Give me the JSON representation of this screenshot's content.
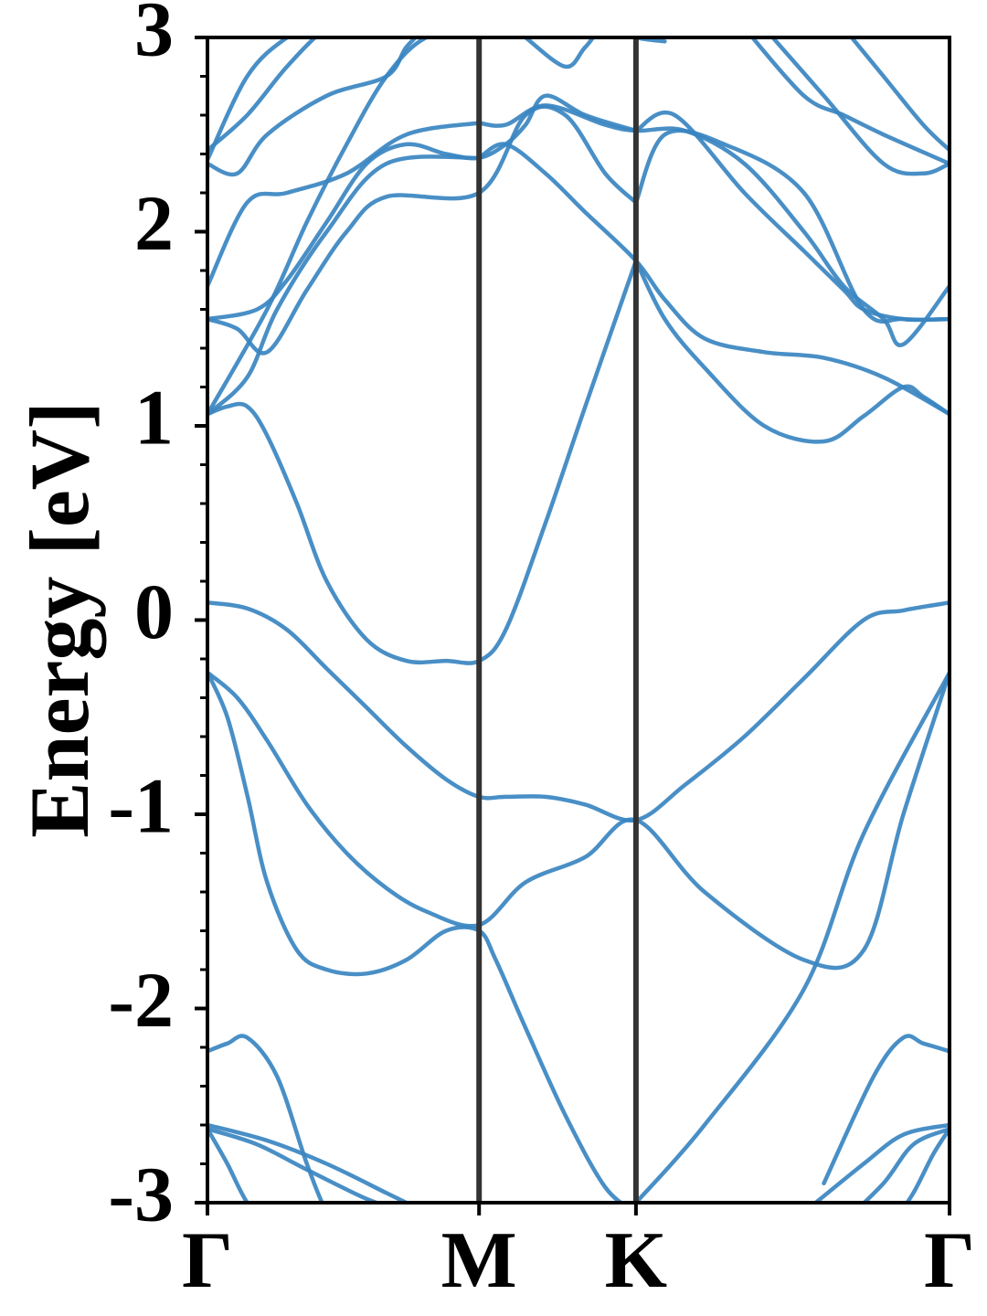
{
  "chart_data": {
    "type": "line",
    "title": "",
    "xlabel": "",
    "ylabel": "Energy [eV]",
    "ylim": [
      -3,
      3
    ],
    "xlim": [
      0,
      3.732
    ],
    "grid": false,
    "y_ticks": [
      -3,
      -2,
      -1,
      0,
      1,
      2,
      3
    ],
    "y_tick_labels": [
      "-3",
      "-2",
      "-1",
      "0",
      "1",
      "2",
      "3"
    ],
    "high_symmetry_points": [
      {
        "label": "Γ",
        "x": 0
      },
      {
        "label": "M",
        "x": 1.366
      },
      {
        "label": "K",
        "x": 2.155
      },
      {
        "label": "Γ",
        "x": 3.732
      }
    ],
    "colors": {
      "band": "#3a86c1",
      "divider": "#333333",
      "axis": "#000000"
    },
    "series": [
      {
        "x": [
          0,
          0.2,
          0.4,
          0.6,
          0.8,
          1.0,
          1.2,
          1.366,
          1.5,
          1.7,
          1.9,
          2.155,
          2.4,
          2.7,
          3.0,
          3.3,
          3.5,
          3.732
        ],
        "values": [
          0.09,
          0.06,
          -0.05,
          -0.25,
          -0.45,
          -0.65,
          -0.82,
          -0.91,
          -0.91,
          -0.91,
          -0.95,
          -1.03,
          -0.85,
          -0.6,
          -0.3,
          0.0,
          0.05,
          0.09
        ]
      },
      {
        "x": [
          0,
          0.15,
          0.3,
          0.5,
          0.7,
          0.9,
          1.1,
          1.366,
          1.6,
          1.9,
          2.155,
          2.5,
          3.0,
          3.3,
          3.5,
          3.732
        ],
        "values": [
          -0.27,
          -0.4,
          -0.62,
          -0.95,
          -1.2,
          -1.38,
          -1.5,
          -1.57,
          -1.35,
          -1.22,
          -1.03,
          -1.4,
          -1.75,
          -1.7,
          -1.0,
          -0.27
        ]
      },
      {
        "x": [
          0,
          0.1,
          0.2,
          0.3,
          0.45,
          0.6,
          0.8,
          1.0,
          1.2,
          1.366,
          1.45,
          1.6,
          1.8,
          2.0,
          2.155
        ],
        "values": [
          -0.27,
          -0.5,
          -0.9,
          -1.35,
          -1.7,
          -1.8,
          -1.82,
          -1.75,
          -1.6,
          -1.6,
          -1.75,
          -2.1,
          -2.55,
          -2.92,
          -3.05
        ]
      },
      {
        "x": [
          2.155,
          2.5,
          3.0,
          3.3,
          3.732
        ],
        "values": [
          -3.0,
          -2.6,
          -1.9,
          -1.1,
          -0.27
        ]
      },
      {
        "x": [
          0,
          0.1,
          0.2,
          0.3,
          0.45,
          0.6,
          0.8,
          1.0,
          1.2,
          1.366,
          1.5,
          1.7,
          1.9,
          2.155
        ],
        "values": [
          1.06,
          1.1,
          1.1,
          0.95,
          0.6,
          0.2,
          -0.1,
          -0.21,
          -0.21,
          -0.21,
          -0.05,
          0.5,
          1.1,
          1.85
        ]
      },
      {
        "x": [
          2.155,
          2.3,
          2.5,
          2.8,
          3.1,
          3.3,
          3.5,
          3.6,
          3.732
        ],
        "values": [
          1.85,
          1.55,
          1.3,
          1.0,
          0.92,
          1.05,
          1.2,
          1.15,
          1.06
        ]
      },
      {
        "x": [
          0,
          0.3,
          0.5,
          0.7,
          0.9,
          1.1,
          1.366
        ],
        "values": [
          1.06,
          1.6,
          2.05,
          2.45,
          2.8,
          3.0,
          3.05
        ]
      },
      {
        "x": [
          0,
          0.2,
          0.35,
          0.6,
          0.9,
          1.366
        ],
        "values": [
          1.06,
          1.25,
          1.6,
          2.0,
          2.35,
          2.38
        ]
      },
      {
        "x": [
          1.366,
          1.5,
          1.7,
          1.9,
          2.155,
          2.3,
          2.5,
          2.8,
          3.1,
          3.4,
          3.732
        ],
        "values": [
          2.38,
          2.45,
          2.3,
          2.1,
          1.85,
          1.65,
          1.45,
          1.38,
          1.35,
          1.25,
          1.06
        ]
      },
      {
        "x": [
          0,
          0.15,
          0.3,
          0.5,
          0.7,
          0.9,
          1.366,
          1.6,
          1.8,
          2.0,
          2.155
        ],
        "values": [
          1.55,
          1.5,
          1.38,
          1.7,
          2.0,
          2.18,
          2.2,
          2.6,
          2.6,
          2.3,
          2.15
        ]
      },
      {
        "x": [
          2.155,
          2.3,
          2.6,
          3.0,
          3.3,
          3.5,
          3.732
        ],
        "values": [
          2.15,
          2.5,
          2.45,
          2.2,
          1.6,
          1.55,
          1.55
        ]
      },
      {
        "x": [
          0,
          0.25,
          0.4,
          0.6,
          0.8,
          1.0,
          1.2,
          1.366,
          1.5,
          1.6,
          1.7,
          1.9,
          2.155
        ],
        "values": [
          1.55,
          1.6,
          1.75,
          2.05,
          2.35,
          2.45,
          2.4,
          2.38,
          2.45,
          2.55,
          2.7,
          2.6,
          2.52
        ]
      },
      {
        "x": [
          2.155,
          2.35,
          2.7,
          3.0,
          3.2,
          3.3,
          3.5,
          3.732
        ],
        "values": [
          2.52,
          2.6,
          2.2,
          1.9,
          1.7,
          1.6,
          1.55,
          1.55
        ]
      },
      {
        "x": [
          0,
          0.2,
          0.4,
          0.7,
          1.0,
          1.366
        ],
        "values": [
          1.72,
          2.15,
          2.2,
          2.3,
          2.5,
          2.56
        ]
      },
      {
        "x": [
          1.366,
          1.5,
          1.7,
          2.0,
          2.155,
          2.4,
          2.7,
          3.0,
          3.2,
          3.4,
          3.5,
          3.732
        ],
        "values": [
          2.56,
          2.55,
          2.65,
          2.55,
          2.52,
          2.52,
          2.35,
          2.0,
          1.72,
          1.55,
          1.42,
          1.72
        ]
      },
      {
        "x": [
          0,
          0.15,
          0.3,
          0.6,
          0.9,
          1.0,
          1.1
        ],
        "values": [
          2.35,
          2.3,
          2.5,
          2.7,
          2.8,
          2.95,
          3.05
        ]
      },
      {
        "x": [
          0,
          0.2,
          0.4,
          0.6,
          0.8,
          1.0
        ],
        "values": [
          2.42,
          2.6,
          2.85,
          3.05,
          3.15,
          3.2
        ]
      },
      {
        "x": [
          0,
          0.2,
          0.4,
          0.6
        ],
        "values": [
          2.37,
          2.8,
          3.0,
          3.1
        ]
      },
      {
        "x": [
          1.6,
          1.8,
          1.9,
          2.0,
          2.155,
          2.3
        ],
        "values": [
          3.0,
          2.85,
          2.95,
          3.05,
          3.0,
          2.98
        ]
      },
      {
        "x": [
          2.7,
          3.0,
          3.2,
          3.4,
          3.732
        ],
        "values": [
          3.05,
          2.7,
          2.6,
          2.5,
          2.35
        ]
      },
      {
        "x": [
          2.8,
          3.1,
          3.4,
          3.6,
          3.732
        ],
        "values": [
          3.05,
          2.7,
          2.35,
          2.3,
          2.35
        ]
      },
      {
        "x": [
          3.2,
          3.4,
          3.6,
          3.732
        ],
        "values": [
          3.05,
          2.8,
          2.55,
          2.42
        ]
      },
      {
        "x": [
          0,
          0.1,
          0.2,
          0.35,
          0.5,
          0.6,
          0.7
        ],
        "values": [
          -2.22,
          -2.18,
          -2.15,
          -2.35,
          -2.8,
          -3.05,
          -3.2
        ]
      },
      {
        "x": [
          3.732,
          3.6,
          3.5,
          3.35,
          3.1
        ],
        "values": [
          -2.22,
          -2.18,
          -2.15,
          -2.35,
          -2.9
        ]
      },
      {
        "x": [
          0,
          0.3,
          0.6,
          0.9,
          1.1
        ],
        "values": [
          -2.6,
          -2.68,
          -2.8,
          -2.95,
          -3.05
        ]
      },
      {
        "x": [
          0,
          0.25,
          0.5,
          0.8,
          1.0
        ],
        "values": [
          -2.62,
          -2.7,
          -2.83,
          -2.98,
          -3.05
        ]
      },
      {
        "x": [
          0,
          0.1,
          0.2,
          0.35
        ],
        "values": [
          -2.62,
          -2.8,
          -3.0,
          -3.2
        ]
      },
      {
        "x": [
          3.732,
          3.5,
          3.3,
          3.0
        ],
        "values": [
          -2.6,
          -2.65,
          -2.8,
          -3.05
        ]
      },
      {
        "x": [
          3.732,
          3.55,
          3.4,
          3.2
        ],
        "values": [
          -2.62,
          -2.7,
          -2.9,
          -3.1
        ]
      },
      {
        "x": [
          3.732,
          3.65,
          3.55,
          3.45
        ],
        "values": [
          -2.62,
          -2.75,
          -2.95,
          -3.1
        ]
      }
    ]
  }
}
